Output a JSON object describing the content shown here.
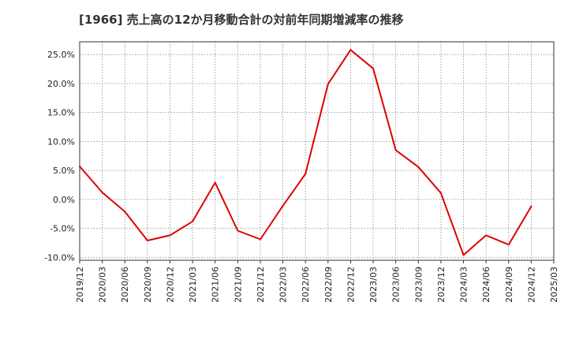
{
  "chart_data": {
    "type": "line",
    "title": "[1966]  売上高の12か月移動合計の対前年同期増減率の推移",
    "xlabel": "",
    "ylabel": "",
    "x": [
      "2019/12",
      "2020/03",
      "2020/06",
      "2020/09",
      "2020/12",
      "2021/03",
      "2021/06",
      "2021/09",
      "2021/12",
      "2022/03",
      "2022/06",
      "2022/09",
      "2022/12",
      "2023/03",
      "2023/06",
      "2023/09",
      "2023/12",
      "2024/03",
      "2024/06",
      "2024/09",
      "2024/12",
      "2025/03"
    ],
    "series": [
      {
        "name": "増減率",
        "color": "#e00000",
        "values": [
          5.7,
          1.2,
          -2.1,
          -7.1,
          -6.2,
          -3.8,
          2.9,
          -5.4,
          -6.9,
          -1.1,
          4.4,
          19.9,
          25.8,
          22.6,
          8.5,
          5.6,
          1.1,
          -9.6,
          -6.2,
          -7.8,
          -1.2,
          null
        ]
      }
    ],
    "ylim": [
      -10.5,
      27.2
    ],
    "yticks": [
      -10.0,
      -5.0,
      0.0,
      5.0,
      10.0,
      15.0,
      20.0,
      25.0
    ],
    "ytick_labels": [
      "-10.0%",
      "-5.0%",
      "0.0%",
      "5.0%",
      "10.0%",
      "15.0%",
      "20.0%",
      "25.0%"
    ],
    "grid": true,
    "legend": "none"
  }
}
